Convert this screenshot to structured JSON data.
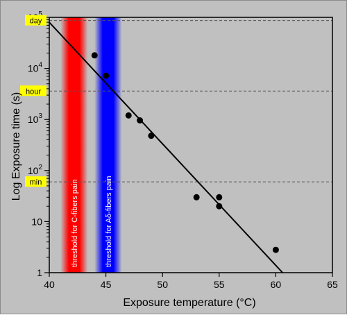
{
  "chart_data": {
    "type": "scatter",
    "xlabel": "Exposure temperature (°C)",
    "ylabel": "Log Exposure time (s)",
    "xlim": [
      40,
      65
    ],
    "ylim": [
      1,
      100000
    ],
    "yscale": "log",
    "x_ticks": [
      "40",
      "45",
      "50",
      "55",
      "60",
      "65"
    ],
    "y_ticks": [
      {
        "base": "1",
        "exp": ""
      },
      {
        "base": "10",
        "exp": ""
      },
      {
        "base": "10",
        "exp": "2"
      },
      {
        "base": "10",
        "exp": "3"
      },
      {
        "base": "10",
        "exp": "4"
      },
      {
        "base": "10",
        "exp": "5"
      }
    ],
    "points": [
      {
        "x": 44,
        "y": 18000
      },
      {
        "x": 45,
        "y": 7200
      },
      {
        "x": 47,
        "y": 1200
      },
      {
        "x": 48,
        "y": 960
      },
      {
        "x": 49,
        "y": 480
      },
      {
        "x": 53,
        "y": 30
      },
      {
        "x": 55,
        "y": 30
      },
      {
        "x": 55,
        "y": 20
      },
      {
        "x": 60,
        "y": 2.8
      }
    ],
    "fit_line": [
      {
        "x": 40,
        "y": 80000
      },
      {
        "x": 60.6,
        "y": 1
      }
    ],
    "reference_lines": [
      {
        "label": "day",
        "y": 86400
      },
      {
        "label": "hour",
        "y": 3600
      },
      {
        "label": "min",
        "y": 60
      }
    ],
    "bands": [
      {
        "label": "threshold for C-fibers pain",
        "x_center": 42.2,
        "x_width": 2.4,
        "color": "#ff0000"
      },
      {
        "label": "threshold for Aδ-fibers pain",
        "x_center": 45.2,
        "x_width": 2.4,
        "color": "#0000ff"
      }
    ],
    "colors": {
      "background": "#c0c0c0",
      "points": "#000000",
      "fit_line": "#000000",
      "tag_background": "#ffff00",
      "reference_line": "#555555"
    },
    "grid": false
  }
}
